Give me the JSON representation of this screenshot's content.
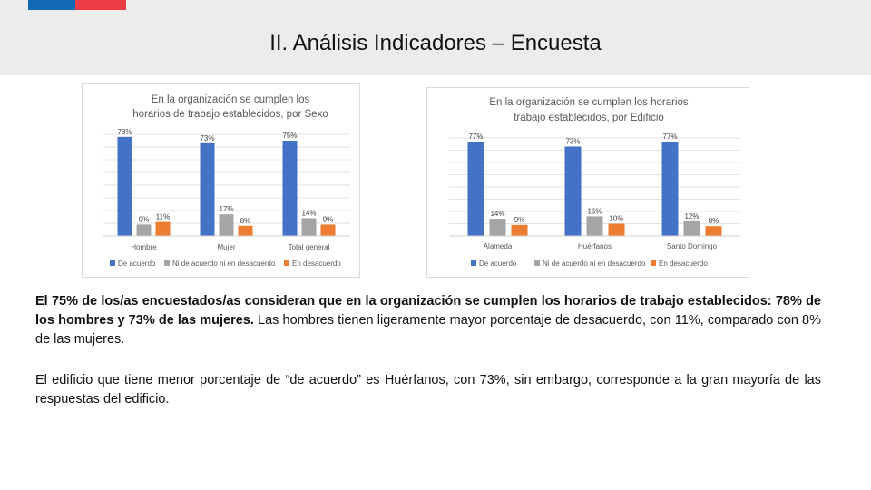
{
  "header": {
    "title": "II. Análisis Indicadores – Encuesta",
    "flag_colors": [
      "#0f69b4",
      "#eb3c46"
    ]
  },
  "chart_data": [
    {
      "type": "bar",
      "title": "En la organización se cumplen los horarios de trabajo establecidos, por Sexo",
      "title_lines": [
        "En la organización se cumplen los",
        "horarios de trabajo establecidos, por Sexo"
      ],
      "categories": [
        "Hombre",
        "Mujer",
        "Total general"
      ],
      "series": [
        {
          "name": "De acuerdo",
          "color": "#4472c4",
          "values": [
            78,
            73,
            75
          ],
          "labels": [
            "78%",
            "73%",
            "75%"
          ]
        },
        {
          "name": "Ni de acuerdo ni en desacuerdo",
          "color": "#a5a5a5",
          "values": [
            9,
            17,
            14
          ],
          "labels": [
            "9%",
            "17%",
            "14%"
          ]
        },
        {
          "name": "En desacuerdo",
          "color": "#ed7d31",
          "values": [
            11,
            8,
            9
          ],
          "labels": [
            "11%",
            "8%",
            "9%"
          ]
        }
      ],
      "ylim": [
        0,
        80
      ],
      "grid": true,
      "legend_position": "bottom"
    },
    {
      "type": "bar",
      "title": "En la organización se cumplen los horarios trabajo establecidos, por Edificio",
      "title_lines": [
        "En la organización se cumplen los horarios",
        "trabajo establecidos, por Edificio"
      ],
      "categories": [
        "Alameda",
        "Huérfanos",
        "Santo Domingo"
      ],
      "series": [
        {
          "name": "De acuerdo",
          "color": "#4472c4",
          "values": [
            77,
            73,
            77
          ],
          "labels": [
            "77%",
            "73%",
            "77%"
          ]
        },
        {
          "name": "Ni de acuerdo ni en desacuerdo",
          "color": "#a5a5a5",
          "values": [
            14,
            16,
            12
          ],
          "labels": [
            "14%",
            "16%",
            "12%"
          ]
        },
        {
          "name": "En desacuerdo",
          "color": "#ed7d31",
          "values": [
            9,
            10,
            8
          ],
          "labels": [
            "9%",
            "10%",
            "8%"
          ]
        }
      ],
      "ylim": [
        0,
        80
      ],
      "grid": true,
      "legend_position": "bottom"
    }
  ],
  "paragraph1": {
    "bold": "El 75% de los/as encuestados/as consideran que en la organización se cumplen los horarios de trabajo establecidos: 78% de los hombres y 73% de las mujeres.",
    "normal": " Las hombres tienen ligeramente mayor porcentaje de desacuerdo, con 11%, comparado con 8% de las mujeres."
  },
  "paragraph2": {
    "text": "El edificio que tiene menor porcentaje de “de acuerdo” es Huérfanos, con 73%, sin embargo, corresponde a la gran mayoría de las respuestas del edificio."
  }
}
